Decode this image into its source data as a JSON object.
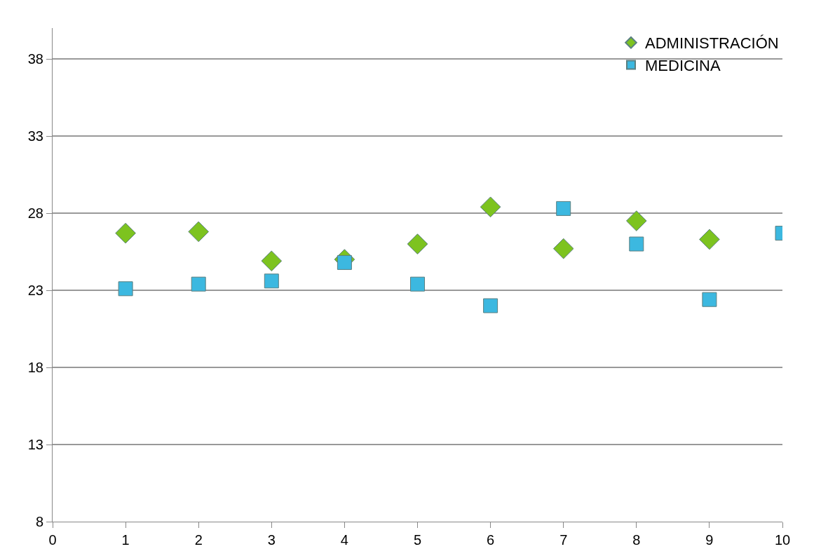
{
  "chart_data": {
    "type": "scatter",
    "x": [
      1,
      2,
      3,
      4,
      5,
      6,
      7,
      8,
      9,
      10
    ],
    "series": [
      {
        "name": "ADMINISTRACIÓN",
        "color": "#7dc31f",
        "marker": "diamond",
        "values": [
          26.7,
          26.8,
          24.9,
          25.0,
          26.0,
          28.4,
          25.7,
          27.5,
          26.3,
          null
        ]
      },
      {
        "name": "MEDICINA",
        "color": "#3cb8e0",
        "marker": "square",
        "values": [
          23.1,
          23.4,
          23.6,
          24.8,
          23.4,
          22.0,
          28.3,
          26.0,
          22.4,
          26.7
        ]
      }
    ],
    "xlim": [
      0,
      10
    ],
    "xticks": [
      0,
      1,
      2,
      3,
      4,
      5,
      6,
      7,
      8,
      9,
      10
    ],
    "ylim": [
      8,
      40
    ],
    "yticks": [
      8,
      13,
      18,
      23,
      28,
      33,
      38
    ],
    "grid": "y",
    "legend": "top right"
  }
}
